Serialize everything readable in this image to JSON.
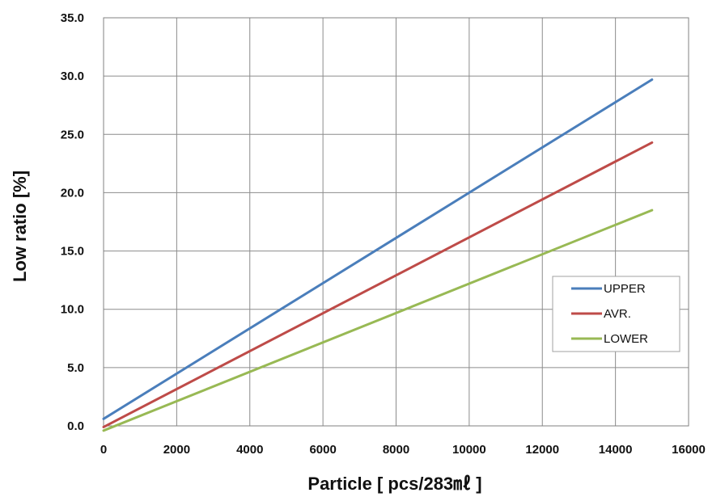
{
  "chart_data": {
    "type": "line",
    "title": "",
    "xlabel": "Particle [ pcs/283㎖ ]",
    "ylabel": "Low ratio [%]",
    "xlim": [
      0,
      16000
    ],
    "ylim": [
      0,
      35
    ],
    "xticks": [
      0,
      2000,
      4000,
      6000,
      8000,
      10000,
      12000,
      14000,
      16000
    ],
    "yticks": [
      "0.0",
      "5.0",
      "10.0",
      "15.0",
      "20.0",
      "25.0",
      "30.0",
      "35.0"
    ],
    "grid": true,
    "legend_position": "right",
    "series": [
      {
        "name": "UPPER",
        "color": "#4a7ebb",
        "x": [
          0,
          15000
        ],
        "y": [
          0.6,
          29.7
        ]
      },
      {
        "name": "AVR.",
        "color": "#be4b48",
        "x": [
          0,
          15000
        ],
        "y": [
          -0.1,
          24.3
        ]
      },
      {
        "name": "LOWER",
        "color": "#98b954",
        "x": [
          0,
          15000
        ],
        "y": [
          -0.4,
          18.5
        ]
      }
    ]
  }
}
